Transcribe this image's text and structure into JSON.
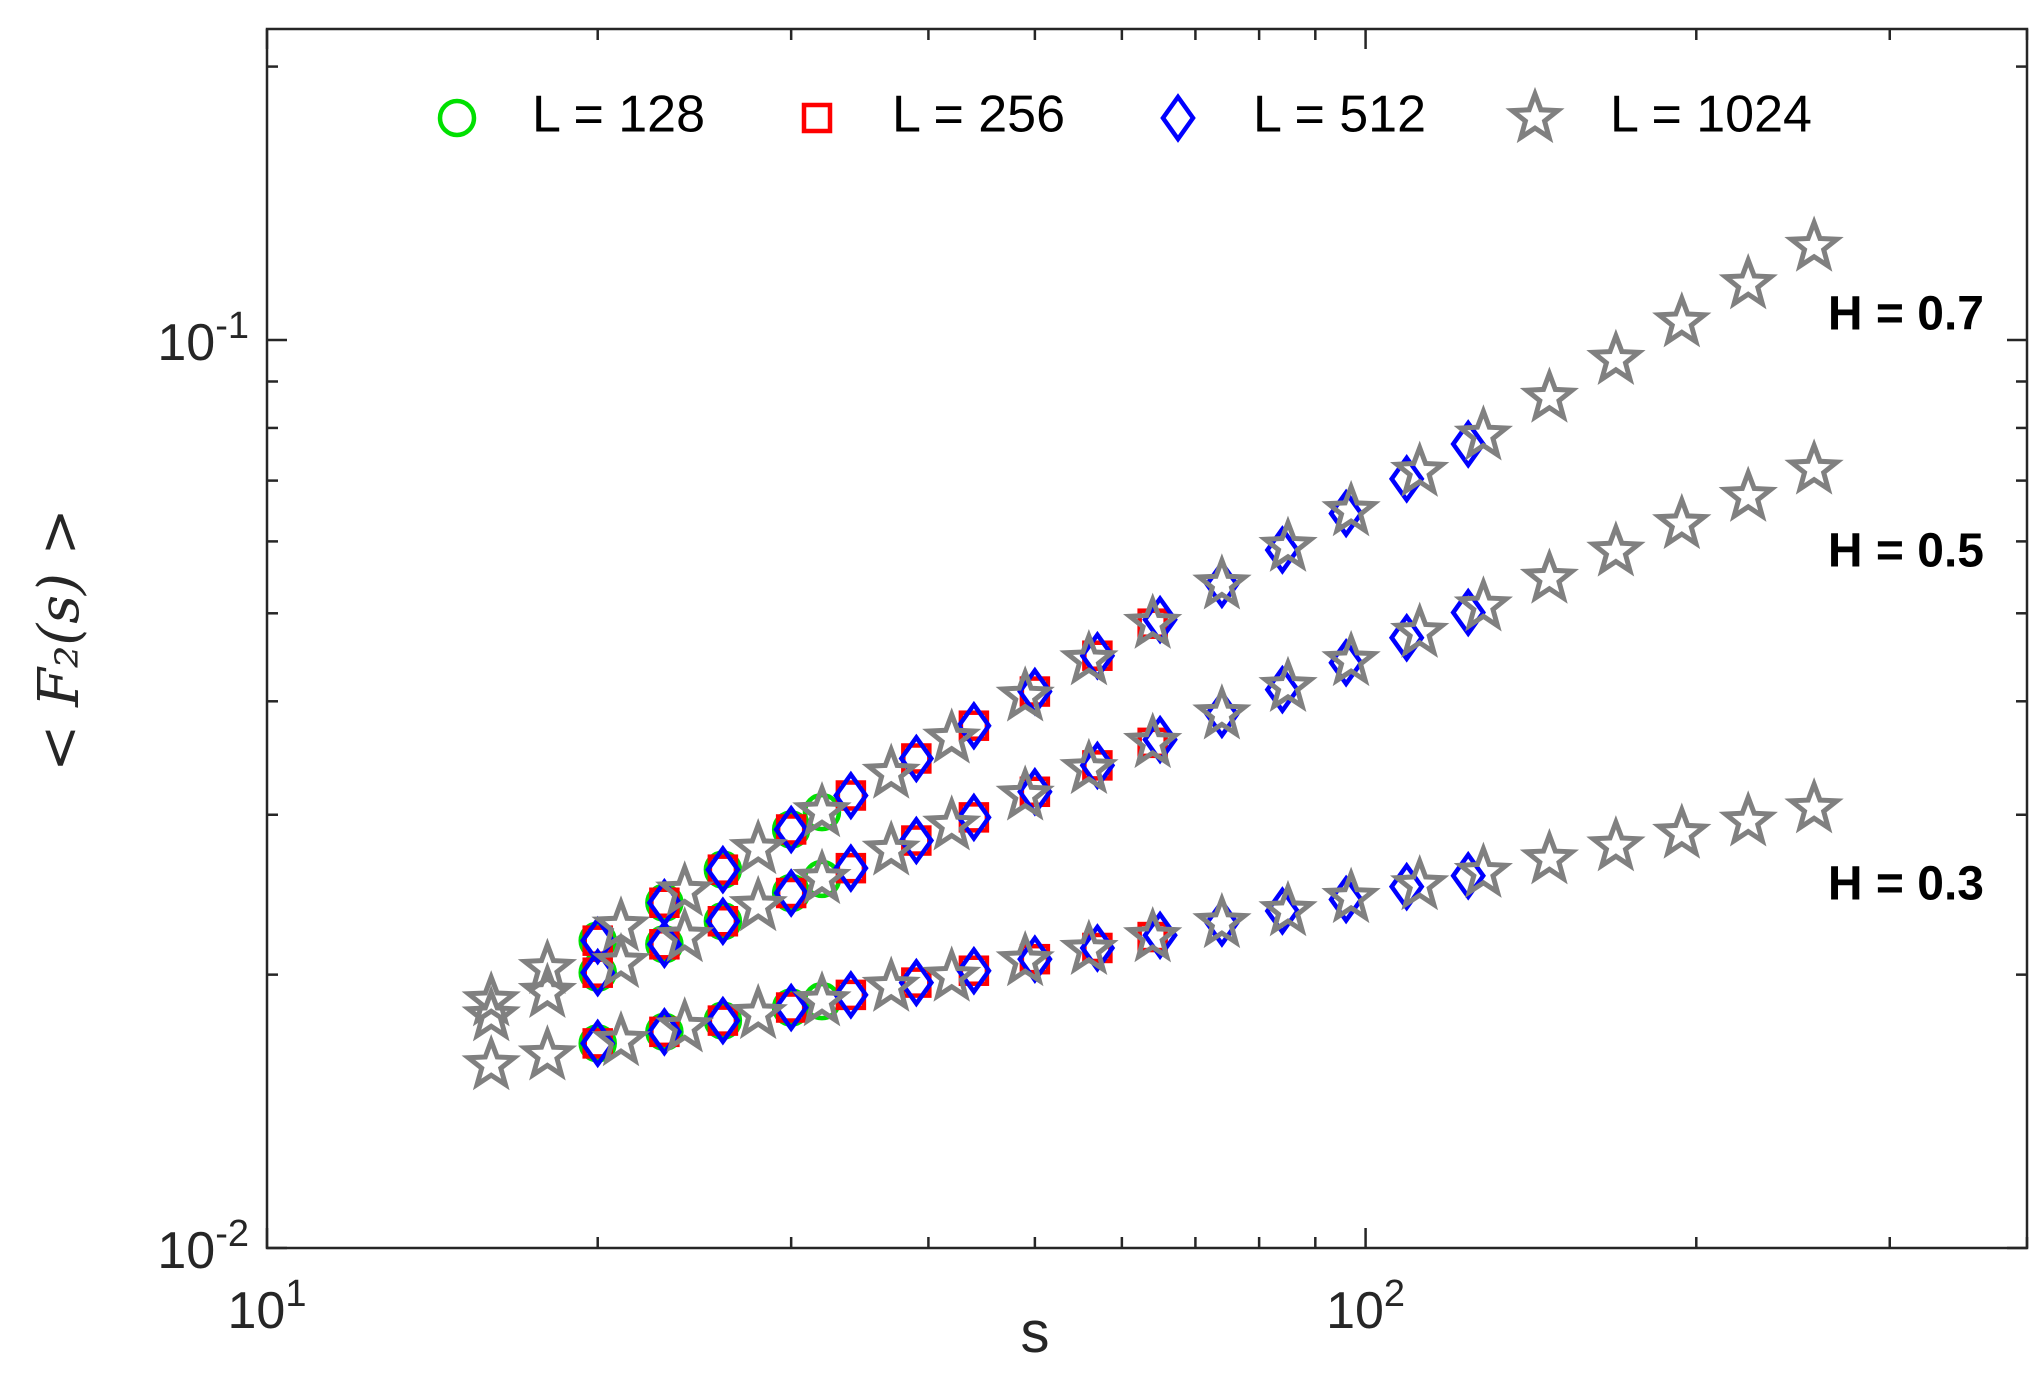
{
  "chart_data": {
    "type": "scatter",
    "xlabel": "s",
    "ylabel": "< F₂(s) >",
    "log_x": true,
    "log_y": true,
    "xlim": [
      10,
      400
    ],
    "ylim": [
      0.01,
      0.22
    ],
    "xticks": [
      {
        "value": 10,
        "label": "10^1"
      },
      {
        "value": 100,
        "label": "10^2"
      }
    ],
    "yticks": [
      {
        "value": 0.01,
        "label": "10^-2"
      },
      {
        "value": 0.1,
        "label": "10^-1"
      }
    ],
    "xminorticks": [
      20,
      30,
      40,
      50,
      60,
      70,
      80,
      90,
      200,
      300,
      400
    ],
    "yminorticks": [
      0.02,
      0.03,
      0.04,
      0.05,
      0.06,
      0.07,
      0.08,
      0.09,
      0.2
    ],
    "legend": "top",
    "annotations": [
      "H = 0.3",
      "H = 0.5",
      "H = 0.7"
    ],
    "series": [
      {
        "name": "L = 128",
        "color": "#00e000",
        "marker": "circle",
        "x": [
          20,
          23,
          26,
          30,
          32
        ],
        "values": [
          [
            0.0168,
            0.0173,
            0.0178,
            0.0184,
            0.0187
          ],
          [
            0.0201,
            0.0216,
            0.0229,
            0.0246,
            0.0255
          ],
          [
            0.0218,
            0.024,
            0.0261,
            0.0289,
            0.0302
          ]
        ]
      },
      {
        "name": "L = 256",
        "color": "#ff0000",
        "marker": "square",
        "x": [
          20,
          23,
          26,
          30,
          34,
          39,
          44,
          50,
          57,
          64
        ],
        "values": [
          [
            0.0168,
            0.0173,
            0.0178,
            0.0184,
            0.019,
            0.0196,
            0.0202,
            0.0208,
            0.0214,
            0.022
          ],
          [
            0.0201,
            0.0216,
            0.0229,
            0.0246,
            0.0262,
            0.0281,
            0.0298,
            0.0318,
            0.034,
            0.036
          ],
          [
            0.0218,
            0.024,
            0.0261,
            0.0289,
            0.0315,
            0.0346,
            0.0376,
            0.041,
            0.0449,
            0.0487
          ]
        ]
      },
      {
        "name": "L = 512",
        "color": "#0000ff",
        "marker": "diamond",
        "x": [
          20,
          23,
          26,
          30,
          34,
          39,
          44,
          50,
          57,
          65,
          74,
          84,
          96,
          109,
          124
        ],
        "values": [
          [
            0.0168,
            0.0173,
            0.0178,
            0.0184,
            0.019,
            0.0196,
            0.0202,
            0.0208,
            0.0214,
            0.0221,
            0.0228,
            0.0235,
            0.0242,
            0.025,
            0.0257
          ],
          [
            0.0201,
            0.0216,
            0.0229,
            0.0246,
            0.0262,
            0.0281,
            0.0298,
            0.0318,
            0.034,
            0.0363,
            0.0387,
            0.0412,
            0.0441,
            0.047,
            0.0501
          ],
          [
            0.0218,
            0.024,
            0.0261,
            0.0289,
            0.0315,
            0.0346,
            0.0376,
            0.041,
            0.0449,
            0.0492,
            0.0538,
            0.0587,
            0.0644,
            0.0703,
            0.0768
          ]
        ]
      },
      {
        "name": "L = 1024",
        "color": "#808080",
        "marker": "star",
        "x": [
          16,
          18,
          21,
          24,
          28,
          32,
          37,
          42,
          49,
          56,
          64,
          74,
          85,
          97,
          112,
          128,
          147,
          169,
          194,
          223,
          256
        ],
        "values": [
          [
            0.0159,
            0.0163,
            0.0169,
            0.0175,
            0.0181,
            0.0187,
            0.0194,
            0.0199,
            0.0207,
            0.0213,
            0.022,
            0.0228,
            0.0235,
            0.0243,
            0.0251,
            0.0259,
            0.0268,
            0.0277,
            0.0286,
            0.0295,
            0.0305
          ],
          [
            0.018,
            0.0191,
            0.0206,
            0.022,
            0.0238,
            0.0255,
            0.0274,
            0.0292,
            0.0315,
            0.0337,
            0.036,
            0.0387,
            0.0415,
            0.0443,
            0.0476,
            0.0509,
            0.0546,
            0.0585,
            0.0627,
            0.0672,
            0.072
          ],
          [
            0.0187,
            0.0203,
            0.0226,
            0.0247,
            0.0275,
            0.0302,
            0.0333,
            0.0364,
            0.0405,
            0.0444,
            0.0487,
            0.0538,
            0.0592,
            0.0648,
            0.0716,
            0.0785,
            0.0864,
            0.0951,
            0.1046,
            0.1152,
            0.1267
          ]
        ]
      }
    ]
  }
}
